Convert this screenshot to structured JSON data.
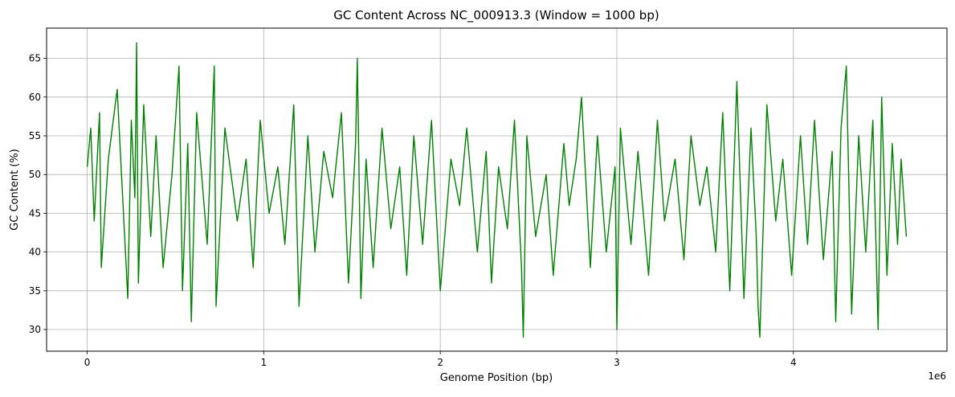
{
  "chart_data": {
    "type": "line",
    "title": "GC Content Across NC_000913.3 (Window = 1000 bp)",
    "xlabel": "Genome Position (bp)",
    "ylabel": "GC Content (%)",
    "x_offset_text": "1e6",
    "x_scale_factor": 1000000,
    "xlim": [
      -230000,
      4870000
    ],
    "ylim": [
      27.2,
      68.9
    ],
    "x_ticks": [
      0,
      1000000,
      2000000,
      3000000,
      4000000
    ],
    "x_tick_labels": [
      "0",
      "1",
      "2",
      "3",
      "4"
    ],
    "y_ticks": [
      30,
      35,
      40,
      45,
      50,
      55,
      60,
      65
    ],
    "y_tick_labels": [
      "30",
      "35",
      "40",
      "45",
      "50",
      "55",
      "60",
      "65"
    ],
    "grid": true,
    "line_color": "#008000",
    "series": [
      {
        "x": [
          0,
          20000,
          40000,
          70000,
          80000,
          120000,
          170000,
          230000,
          250000,
          270000,
          280000,
          290000,
          320000,
          360000,
          390000,
          430000,
          480000,
          520000,
          540000,
          570000,
          590000,
          620000,
          680000,
          720000,
          730000,
          780000,
          850000,
          900000,
          940000,
          980000,
          1030000,
          1080000,
          1120000,
          1170000,
          1200000,
          1250000,
          1290000,
          1340000,
          1390000,
          1440000,
          1480000,
          1520000,
          1530000,
          1550000,
          1580000,
          1620000,
          1670000,
          1720000,
          1770000,
          1810000,
          1850000,
          1900000,
          1950000,
          2000000,
          2060000,
          2110000,
          2150000,
          2210000,
          2260000,
          2290000,
          2330000,
          2380000,
          2420000,
          2460000,
          2470000,
          2490000,
          2540000,
          2600000,
          2640000,
          2700000,
          2730000,
          2770000,
          2800000,
          2850000,
          2890000,
          2940000,
          2990000,
          3000000,
          3020000,
          3080000,
          3120000,
          3180000,
          3230000,
          3270000,
          3330000,
          3380000,
          3420000,
          3470000,
          3510000,
          3560000,
          3600000,
          3640000,
          3680000,
          3720000,
          3760000,
          3790000,
          3800000,
          3810000,
          3850000,
          3900000,
          3940000,
          3990000,
          4040000,
          4080000,
          4120000,
          4170000,
          4220000,
          4240000,
          4270000,
          4300000,
          4330000,
          4370000,
          4410000,
          4450000,
          4480000,
          4500000,
          4530000,
          4560000,
          4590000,
          4610000,
          4640000
        ],
        "values": [
          51,
          56,
          44,
          58,
          38,
          52,
          61,
          34,
          57,
          47,
          67,
          36,
          59,
          42,
          55,
          38,
          50,
          64,
          35,
          54,
          31,
          58,
          41,
          64,
          33,
          56,
          44,
          52,
          38,
          57,
          45,
          51,
          41,
          59,
          33,
          55,
          40,
          53,
          47,
          58,
          36,
          54,
          65,
          34,
          52,
          38,
          56,
          43,
          51,
          37,
          55,
          41,
          57,
          35,
          52,
          46,
          56,
          40,
          53,
          36,
          51,
          43,
          57,
          38,
          29,
          55,
          42,
          50,
          37,
          54,
          46,
          52,
          60,
          38,
          55,
          40,
          51,
          30,
          56,
          41,
          53,
          37,
          57,
          44,
          52,
          39,
          55,
          46,
          51,
          40,
          58,
          35,
          62,
          34,
          56,
          42,
          33,
          29,
          59,
          44,
          52,
          37,
          55,
          41,
          57,
          39,
          53,
          31,
          56,
          64,
          32,
          55,
          40,
          57,
          30,
          60,
          37,
          54,
          41,
          52,
          42
        ]
      }
    ]
  }
}
